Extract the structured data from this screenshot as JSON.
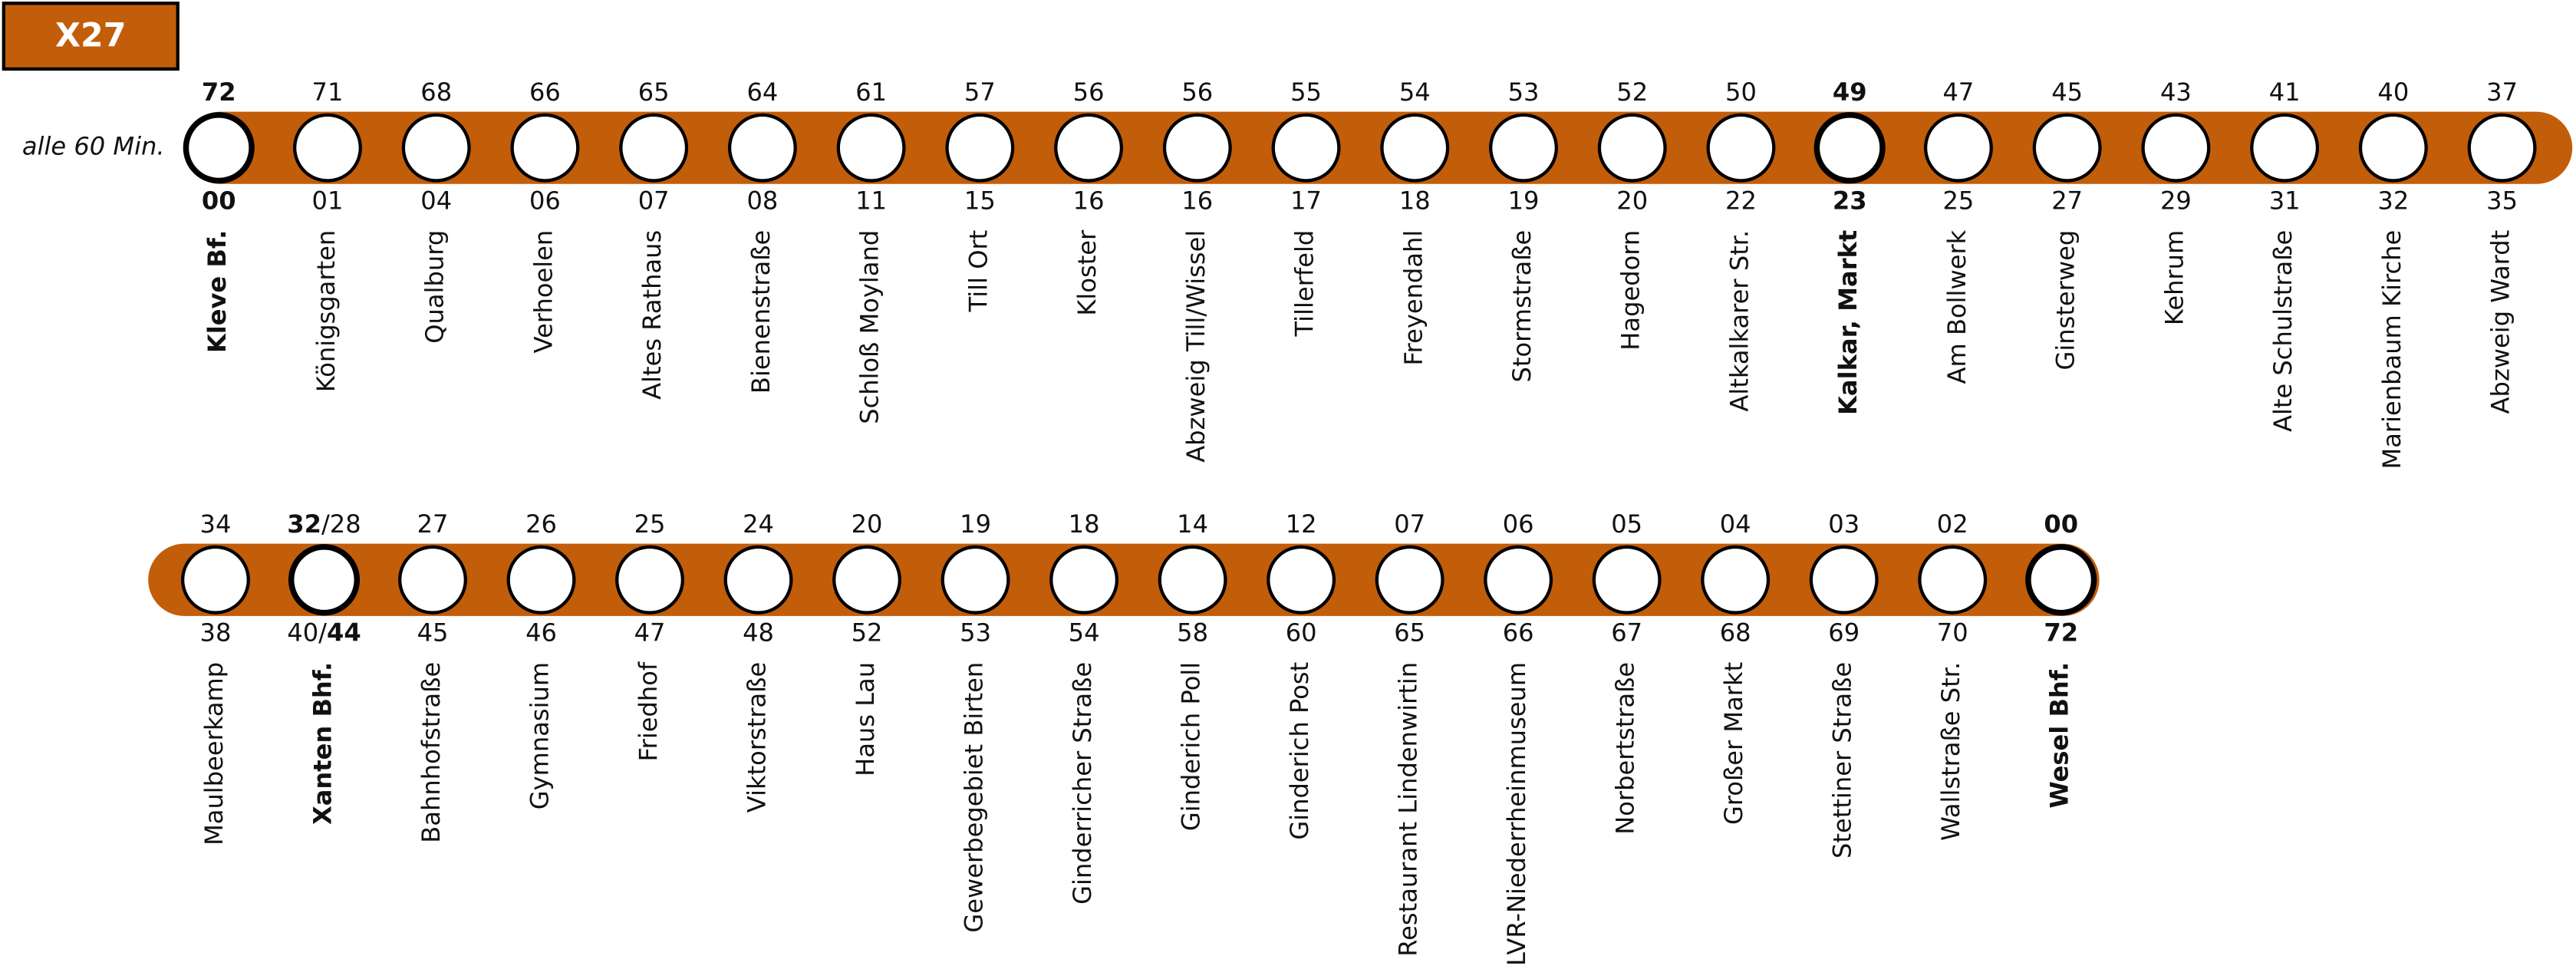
{
  "header": {
    "line": "X27",
    "frequency": "alle 60 Min."
  },
  "rows": [
    {
      "stops": [
        {
          "top": [
            {
              "text": "72",
              "bold": true
            }
          ],
          "bottom": [
            {
              "text": "00",
              "bold": true
            }
          ],
          "name": "Kleve Bf.",
          "major": true
        },
        {
          "top": "71",
          "bottom": "01",
          "name": "Königsgarten"
        },
        {
          "top": "68",
          "bottom": "04",
          "name": "Qualburg"
        },
        {
          "top": "66",
          "bottom": "06",
          "name": "Verhoelen"
        },
        {
          "top": "65",
          "bottom": "07",
          "name": "Altes Rathaus"
        },
        {
          "top": "64",
          "bottom": "08",
          "name": "Bienenstraße"
        },
        {
          "top": "61",
          "bottom": "11",
          "name": "Schloß Moyland"
        },
        {
          "top": "57",
          "bottom": "15",
          "name": "Till Ort"
        },
        {
          "top": "56",
          "bottom": "16",
          "name": "Kloster"
        },
        {
          "top": "56",
          "bottom": "16",
          "name": "Abzweig Till/Wissel"
        },
        {
          "top": "55",
          "bottom": "17",
          "name": "Tillerfeld"
        },
        {
          "top": "54",
          "bottom": "18",
          "name": "Freyendahl"
        },
        {
          "top": "53",
          "bottom": "19",
          "name": "Stormstraße"
        },
        {
          "top": "52",
          "bottom": "20",
          "name": "Hagedorn"
        },
        {
          "top": "50",
          "bottom": "22",
          "name": "Altkalkarer Str."
        },
        {
          "top": [
            {
              "text": "49",
              "bold": true
            }
          ],
          "bottom": [
            {
              "text": "23",
              "bold": true
            }
          ],
          "name": "Kalkar, Markt",
          "major": true
        },
        {
          "top": "47",
          "bottom": "25",
          "name": "Am Bollwerk"
        },
        {
          "top": "45",
          "bottom": "27",
          "name": "Ginsterweg"
        },
        {
          "top": "43",
          "bottom": "29",
          "name": "Kehrum"
        },
        {
          "top": "41",
          "bottom": "31",
          "name": "Alte Schulstraße"
        },
        {
          "top": "40",
          "bottom": "32",
          "name": "Marienbaum Kirche"
        },
        {
          "top": "37",
          "bottom": "35",
          "name": "Abzweig Wardt"
        }
      ]
    },
    {
      "stops": [
        {
          "top": "34",
          "bottom": "38",
          "name": "Maulbeerkamp"
        },
        {
          "top": [
            {
              "text": "32",
              "bold": true
            },
            {
              "text": "/28",
              "bold": false
            }
          ],
          "bottom": [
            {
              "text": "40/",
              "bold": false
            },
            {
              "text": "44",
              "bold": true
            }
          ],
          "name": "Xanten Bhf.",
          "major": true
        },
        {
          "top": "27",
          "bottom": "45",
          "name": "Bahnhofstraße"
        },
        {
          "top": "26",
          "bottom": "46",
          "name": "Gymnasium"
        },
        {
          "top": "25",
          "bottom": "47",
          "name": "Friedhof"
        },
        {
          "top": "24",
          "bottom": "48",
          "name": "Viktorstraße"
        },
        {
          "top": "20",
          "bottom": "52",
          "name": "Haus Lau"
        },
        {
          "top": "19",
          "bottom": "53",
          "name": "Gewerbegebiet Birten"
        },
        {
          "top": "18",
          "bottom": "54",
          "name": "Ginderricher Straße"
        },
        {
          "top": "14",
          "bottom": "58",
          "name": "Ginderich Poll"
        },
        {
          "top": "12",
          "bottom": "60",
          "name": "Ginderich Post"
        },
        {
          "top": "07",
          "bottom": "65",
          "name": "Restaurant Lindenwirtin"
        },
        {
          "top": "06",
          "bottom": "66",
          "name": "LVR-Niederrheinmuseum"
        },
        {
          "top": "05",
          "bottom": "67",
          "name": "Norbertstraße"
        },
        {
          "top": "04",
          "bottom": "68",
          "name": "Großer Markt"
        },
        {
          "top": "03",
          "bottom": "69",
          "name": "Stettiner Straße"
        },
        {
          "top": "02",
          "bottom": "70",
          "name": "Wallstraße Str."
        },
        {
          "top": [
            {
              "text": "00",
              "bold": true
            }
          ],
          "bottom": [
            {
              "text": "72",
              "bold": true
            }
          ],
          "name": "Wesel Bhf.",
          "major": true
        }
      ]
    }
  ]
}
